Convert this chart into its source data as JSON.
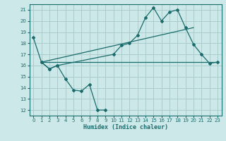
{
  "title": "",
  "xlabel": "Humidex (Indice chaleur)",
  "ylabel": "",
  "background_color": "#cce8e8",
  "grid_color": "#aacccc",
  "line_color": "#1a6b6b",
  "xlim": [
    -0.5,
    23.5
  ],
  "ylim": [
    11.5,
    21.5
  ],
  "yticks": [
    12,
    13,
    14,
    15,
    16,
    17,
    18,
    19,
    20,
    21
  ],
  "xticks": [
    0,
    1,
    2,
    3,
    4,
    5,
    6,
    7,
    8,
    9,
    10,
    11,
    12,
    13,
    14,
    15,
    16,
    17,
    18,
    19,
    20,
    21,
    22,
    23
  ],
  "series": [
    {
      "x": [
        0,
        1,
        2,
        3,
        4,
        5,
        6,
        7,
        8,
        9
      ],
      "y": [
        18.5,
        16.3,
        15.7,
        16.0,
        14.8,
        13.8,
        13.7,
        14.3,
        12.0,
        12.0
      ],
      "marker": true
    },
    {
      "x": [
        1,
        2,
        3,
        10,
        11,
        12,
        13,
        14,
        15,
        16,
        17,
        18,
        19,
        20,
        21,
        22,
        23
      ],
      "y": [
        16.3,
        15.7,
        16.0,
        17.0,
        17.8,
        18.0,
        18.7,
        20.3,
        21.2,
        20.0,
        20.8,
        21.0,
        19.4,
        17.9,
        17.0,
        16.2,
        16.3
      ],
      "marker": true
    },
    {
      "x": [
        1,
        23
      ],
      "y": [
        16.3,
        16.3
      ],
      "marker": false
    },
    {
      "comment": "Diagonal line from x=1 y=16.3 to x=20 y=19.4",
      "x": [
        1,
        20
      ],
      "y": [
        16.3,
        19.4
      ],
      "marker": false
    }
  ]
}
